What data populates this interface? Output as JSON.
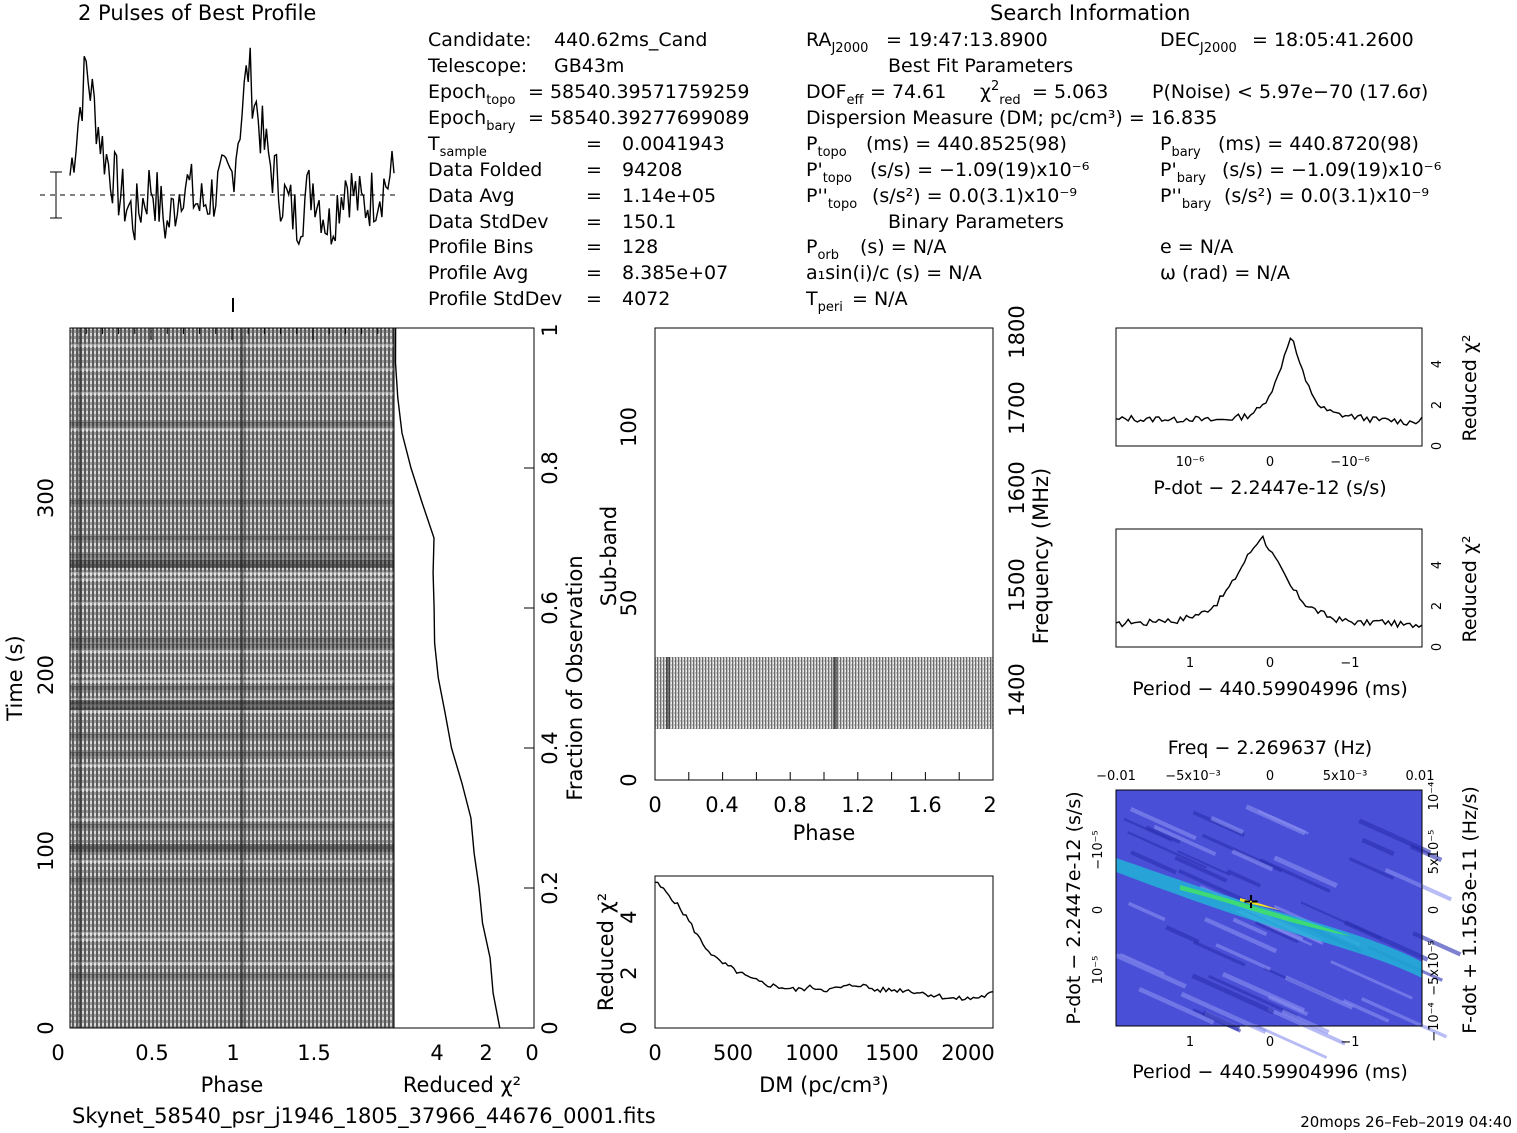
{
  "header": {
    "profile_title": "2 Pulses of Best Profile",
    "search_title": "Search Information"
  },
  "candidate_info": [
    {
      "label": "Candidate:",
      "value": "440.62ms_Cand"
    },
    {
      "label": "Telescope:",
      "value": "GB43m"
    },
    {
      "label": "Epoch",
      "sub": "topo",
      "value": "= 58540.39571759259"
    },
    {
      "label": "Epoch",
      "sub": "bary",
      "value": "= 58540.39277699089"
    },
    {
      "label": "T",
      "sub": "sample",
      "value": "0.0041943"
    },
    {
      "label": "Data Folded",
      "value": "94208"
    },
    {
      "label": "Data Avg",
      "value": "1.14e+05"
    },
    {
      "label": "Data StdDev",
      "value": "150.1"
    },
    {
      "label": "Profile Bins",
      "value": "128"
    },
    {
      "label": "Profile Avg",
      "value": "8.385e+07"
    },
    {
      "label": "Profile StdDev",
      "value": "4072"
    }
  ],
  "search_info": {
    "ra": "= 19:47:13.8900",
    "dec": "= 18:05:41.2600",
    "best_fit_title": "Best Fit Parameters",
    "dof": "= 74.61",
    "chi2": "= 5.063",
    "pnoise": "P(Noise) < 5.97e−70   (17.6σ)",
    "dm": "Dispersion Measure (DM; pc/cm³) = 16.835",
    "p_topo": "(ms) =  440.8525(98)",
    "p_bary": "(ms) =  440.8720(98)",
    "pd_topo": "(s/s) = −1.09(19)x10⁻⁶",
    "pd_bary": "(s/s) = −1.09(19)x10⁻⁶",
    "pdd_topo": "(s/s²) = 0.0(3.1)x10⁻⁹",
    "pdd_bary": "(s/s²) = 0.0(3.1)x10⁻⁹",
    "binary_title": "Binary Parameters",
    "p_orb": "(s) = N/A",
    "e": "e = N/A",
    "a1": "a₁sin(i)/c (s) = N/A",
    "omega": "ω (rad) = N/A",
    "t_peri": "= N/A"
  },
  "labels": {
    "phase": "Phase",
    "time": "Time (s)",
    "reduced_chi2": "Reduced χ²",
    "fraction_obs": "Fraction of Observation",
    "sub_band": "Sub-band",
    "frequency": "Frequency (MHz)",
    "dm_axis": "DM (pc/cm³)",
    "pdot_axis": "P-dot − 2.2447e-12 (s/s)",
    "period_axis": "Period − 440.59904996 (ms)",
    "freq_axis": "Freq − 2.269637 (Hz)",
    "fdot_axis": "F-dot + 1.1563e-11 (Hz/s)"
  },
  "footer": {
    "filename": "Skynet_58540_psr_j1946_1805_37966_44676_0001.fits",
    "stamp": "20mops 26–Feb–2019 04:40"
  },
  "chart_data": [
    {
      "type": "line",
      "name": "profile",
      "x": [
        0,
        0.1,
        0.2,
        0.3,
        0.4,
        0.5,
        0.6,
        0.7,
        0.8,
        0.9,
        1.0,
        1.1,
        1.2,
        1.3,
        1.4,
        1.5,
        1.6,
        1.7,
        1.8,
        1.9,
        2.0
      ],
      "values": [
        0.5,
        3.2,
        1.2,
        0.1,
        -0.6,
        0.3,
        -0.8,
        0.4,
        -0.3,
        0.1,
        0.5,
        3.2,
        1.2,
        0.1,
        -0.6,
        0.3,
        -0.8,
        0.4,
        -0.3,
        0.1,
        0.5
      ]
    },
    {
      "type": "heatmap",
      "name": "time-vs-phase",
      "xlabel": "Phase",
      "ylabel": "Time (s)",
      "xlim": [
        0,
        2
      ],
      "ylim": [
        0,
        400
      ],
      "x_ticks": [
        "0",
        "0.5",
        "1",
        "1.5"
      ],
      "y_ticks": [
        "0",
        "100",
        "200",
        "300"
      ],
      "pulse_phases": [
        0.04,
        1.04
      ]
    },
    {
      "type": "line",
      "name": "reduced-chi2-vs-fraction",
      "xlabel": "Reduced χ²",
      "ylabel": "Fraction of Observation",
      "xlim": [
        5,
        0
      ],
      "ylim": [
        0,
        1
      ],
      "x_ticks": [
        "4",
        "2",
        "0"
      ],
      "y_ticks": [
        "0",
        "0.2",
        "0.4",
        "0.6",
        "0.8",
        "1"
      ],
      "fraction": [
        0.0,
        0.05,
        0.1,
        0.15,
        0.2,
        0.25,
        0.3,
        0.35,
        0.4,
        0.45,
        0.5,
        0.55,
        0.6,
        0.65,
        0.7,
        0.75,
        0.8,
        0.85,
        0.9,
        0.95,
        1.0
      ],
      "chi2": [
        1.2,
        1.4,
        1.6,
        1.9,
        2.0,
        2.1,
        2.3,
        2.6,
        2.9,
        3.2,
        3.4,
        3.5,
        3.5,
        3.6,
        3.6,
        4.0,
        4.4,
        4.7,
        4.9,
        4.9,
        5.0
      ]
    },
    {
      "type": "heatmap",
      "name": "subband-vs-phase",
      "xlabel": "Phase",
      "ylabel": "Sub-band",
      "y2label": "Frequency (MHz)",
      "xlim": [
        0,
        2
      ],
      "ylim": [
        0,
        128
      ],
      "x_ticks": [
        "0",
        "0.4",
        "0.8",
        "1.2",
        "1.6",
        "2"
      ],
      "y_ticks": [
        "0",
        "50",
        "100"
      ],
      "y2_ticks": [
        "1400",
        "1500",
        "1600",
        "1700",
        "1800"
      ],
      "band_range": [
        15,
        35
      ]
    },
    {
      "type": "line",
      "name": "reduced-chi2-vs-dm",
      "xlabel": "DM (pc/cm³)",
      "ylabel": "Reduced χ²",
      "xlim": [
        0,
        2150
      ],
      "ylim": [
        0,
        5.2
      ],
      "x_ticks": [
        "0",
        "500",
        "1000",
        "1500",
        "2000"
      ],
      "y_ticks": [
        "0",
        "2",
        "4"
      ],
      "x": [
        0,
        100,
        200,
        300,
        400,
        500,
        600,
        700,
        800,
        900,
        1000,
        1100,
        1200,
        1300,
        1400,
        1500,
        1600,
        1700,
        1800,
        1900,
        2000,
        2100,
        2150
      ],
      "values": [
        5.0,
        4.5,
        3.8,
        2.9,
        2.3,
        2.0,
        1.7,
        1.5,
        1.4,
        1.3,
        1.4,
        1.3,
        1.4,
        1.5,
        1.3,
        1.3,
        1.3,
        1.2,
        1.1,
        1.0,
        1.0,
        1.1,
        1.2
      ]
    },
    {
      "type": "line",
      "name": "reduced-chi2-vs-pdot",
      "xlabel": "P-dot − 2.2447e-12 (s/s)",
      "ylabel": "Reduced χ²",
      "ylim": [
        0,
        5.5
      ],
      "x_ticks": [
        "10⁻⁶",
        "0",
        "−10⁻⁶"
      ],
      "y_ticks": [
        "0",
        "2",
        "4"
      ],
      "values": [
        1.2,
        1.3,
        1.2,
        1.3,
        1.2,
        1.3,
        1.2,
        1.2,
        1.3,
        1.4,
        1.8,
        3.0,
        5.2,
        3.0,
        1.8,
        1.5,
        1.4,
        1.3,
        1.2,
        1.2,
        1.1,
        1.2
      ]
    },
    {
      "type": "line",
      "name": "reduced-chi2-vs-period",
      "xlabel": "Period − 440.59904996 (ms)",
      "ylabel": "Reduced χ²",
      "ylim": [
        0,
        5.5
      ],
      "x_ticks": [
        "1",
        "0",
        "−1"
      ],
      "y_ticks": [
        "0",
        "2",
        "4"
      ],
      "values": [
        1.0,
        1.2,
        1.1,
        1.3,
        1.2,
        1.4,
        1.6,
        2.1,
        3.0,
        4.2,
        5.2,
        4.0,
        2.8,
        2.0,
        1.6,
        1.3,
        1.2,
        1.1,
        1.2,
        1.1,
        1.0,
        1.1
      ]
    },
    {
      "type": "heatmap",
      "name": "pdot-vs-period",
      "xlabel": "Period − 440.59904996 (ms)",
      "ylabel": "P-dot − 2.2447e-12 (s/s)",
      "x2label": "Freq − 2.269637 (Hz)",
      "y2label": "F-dot + 1.1563e-11 (Hz/s)",
      "x_ticks": [
        "1",
        "0",
        "−1"
      ],
      "x2_ticks": [
        "−0.01",
        "−5x10⁻³",
        "0",
        "5x10⁻³",
        "0.01"
      ],
      "y_ticks": [
        "−10⁻⁵",
        "0",
        "10⁻⁵"
      ],
      "y2_ticks": [
        "10⁻⁴",
        "5x10⁻⁵",
        "0",
        "−5x10⁻⁵",
        "−10⁻⁴"
      ],
      "best": {
        "period": -0.2,
        "pdot": 0
      }
    }
  ]
}
